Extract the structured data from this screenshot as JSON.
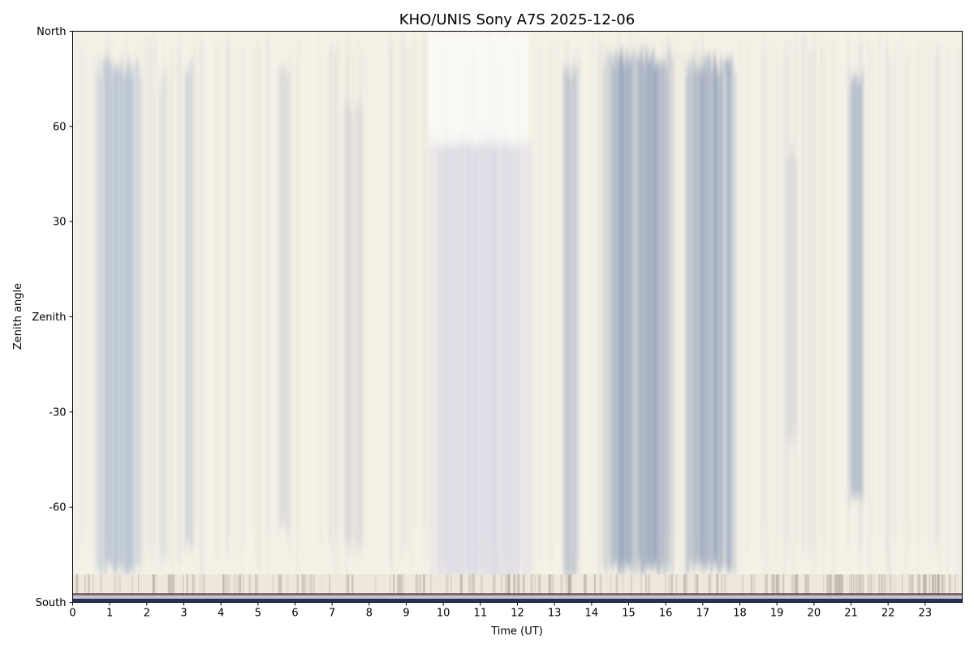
{
  "chart_data": {
    "type": "heatmap",
    "title": "KHO/UNIS Sony A7S 2025-12-06",
    "xlabel": "Time (UT)",
    "ylabel": "Zenith angle",
    "xlim": [
      0,
      24
    ],
    "ylim": [
      -90,
      90
    ],
    "x_ticks": [
      0,
      1,
      2,
      3,
      4,
      5,
      6,
      7,
      8,
      9,
      10,
      11,
      12,
      13,
      14,
      15,
      16,
      17,
      18,
      19,
      20,
      21,
      22,
      23
    ],
    "x_tick_labels": [
      "0",
      "1",
      "2",
      "3",
      "4",
      "5",
      "6",
      "7",
      "8",
      "9",
      "10",
      "11",
      "12",
      "13",
      "14",
      "15",
      "16",
      "17",
      "18",
      "19",
      "20",
      "21",
      "22",
      "23"
    ],
    "y_ticks": [
      90,
      60,
      30,
      0,
      -30,
      -60,
      -90
    ],
    "y_tick_labels": [
      "North",
      "60",
      "30",
      "Zenith",
      "-30",
      "-60",
      "South"
    ],
    "grid": false,
    "background_color": "#f5f1e6",
    "dark_sky_intervals": [
      {
        "start": 0.6,
        "end": 1.9,
        "top": 82,
        "bottom": -82,
        "color": "#a9b9cf",
        "strength": 0.8
      },
      {
        "start": 2.3,
        "end": 2.6,
        "top": 78,
        "bottom": -80,
        "color": "#b9c3d2",
        "strength": 0.4
      },
      {
        "start": 3.0,
        "end": 3.25,
        "top": 82,
        "bottom": -75,
        "color": "#b3bfcf",
        "strength": 0.6
      },
      {
        "start": 5.5,
        "end": 5.9,
        "top": 80,
        "bottom": -70,
        "color": "#c0c1cc",
        "strength": 0.45
      },
      {
        "start": 7.3,
        "end": 7.85,
        "top": 70,
        "bottom": -75,
        "color": "#c1c0c9",
        "strength": 0.45
      },
      {
        "start": 9.6,
        "end": 12.4,
        "top": 60,
        "bottom": -85,
        "color": "#c9cbe6",
        "strength": 0.55
      },
      {
        "start": 13.2,
        "end": 13.65,
        "top": 80,
        "bottom": -85,
        "color": "#9ba8bd",
        "strength": 0.7
      },
      {
        "start": 14.3,
        "end": 16.2,
        "top": 85,
        "bottom": -82,
        "color": "#8f9fb8",
        "strength": 0.9
      },
      {
        "start": 16.5,
        "end": 17.9,
        "top": 83,
        "bottom": -82,
        "color": "#8f9fb8",
        "strength": 0.9
      },
      {
        "start": 19.2,
        "end": 19.55,
        "top": 55,
        "bottom": -40,
        "color": "#b9bcc8",
        "strength": 0.45
      },
      {
        "start": 20.9,
        "end": 21.35,
        "top": 80,
        "bottom": -60,
        "color": "#98a8c0",
        "strength": 0.8
      }
    ]
  }
}
